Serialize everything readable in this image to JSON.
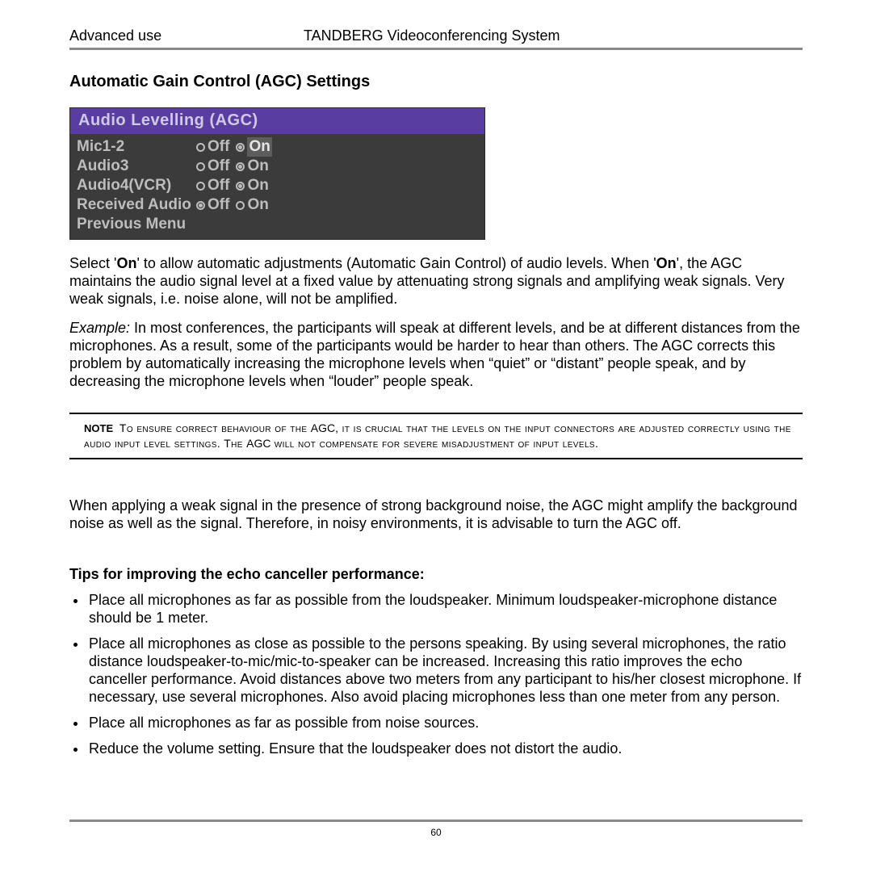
{
  "header": {
    "left": "Advanced use",
    "center": "TANDBERG Videoconferencing System"
  },
  "section_title": "Automatic Gain Control (AGC) Settings",
  "menu": {
    "title": "Audio Levelling (AGC)",
    "title_bg": "#5a3da0",
    "body_bg": "#3b3b3b",
    "text_color": "#bdbdbd",
    "rows": [
      {
        "label": "Mic1-2",
        "off": "Off",
        "on": "On",
        "selected": "on",
        "highlight": true
      },
      {
        "label": "Audio3",
        "off": "Off",
        "on": "On",
        "selected": "on",
        "highlight": false
      },
      {
        "label": "Audio4(VCR)",
        "off": "Off",
        "on": "On",
        "selected": "on",
        "highlight": false
      },
      {
        "label": "Received Audio",
        "off": "Off",
        "on": "On",
        "selected": "off",
        "highlight": false
      }
    ],
    "previous": "Previous Menu"
  },
  "paragraphs": {
    "p1a": "Select '",
    "p1b": "On",
    "p1c": "' to allow automatic adjustments (Automatic Gain Control) of audio levels. When '",
    "p1d": "On",
    "p1e": "', the AGC maintains the audio signal level at a fixed value by attenuating strong signals and amplifying weak signals. Very weak signals, i.e. noise alone, will not be amplified.",
    "p2a": "Example:",
    "p2b": " In most conferences, the participants will speak at different levels, and be at different distances from the microphones. As a result, some of the participants would be harder to hear than others. The AGC corrects this problem by automatically increasing the microphone levels when “quiet” or “distant” people speak, and by decreasing the microphone levels when “louder” people speak.",
    "p3": "When applying a weak signal in the presence of strong background noise, the AGC might amplify the background noise as well as the signal. Therefore, in noisy environments, it is advisable to turn the AGC off."
  },
  "note": {
    "label": "NOTE",
    "t1": "To ensure correct behaviour of the ",
    "t2": "AGC",
    "t3": ", it is crucial that the levels on the input connectors are adjusted correctly using the audio input level settings. The ",
    "t4": "AGC",
    "t5": " will not compensate for severe misadjustment of input levels."
  },
  "tips": {
    "title": "Tips for improving the echo canceller performance:",
    "items": [
      "Place all microphones as far as possible from the loudspeaker. Minimum loudspeaker-microphone distance should be 1 meter.",
      "Place all microphones as close as possible to the persons speaking. By using several microphones, the ratio distance loudspeaker-to-mic/mic-to-speaker can be increased. Increasing this ratio improves the echo canceller performance. Avoid distances above two meters from any participant to his/her closest microphone. If necessary, use several microphones. Also avoid placing microphones less than one meter from any person.",
      "Place all microphones as far as possible from noise sources.",
      "Reduce the volume setting. Ensure that the loudspeaker does not distort the audio."
    ]
  },
  "page_number": "60"
}
